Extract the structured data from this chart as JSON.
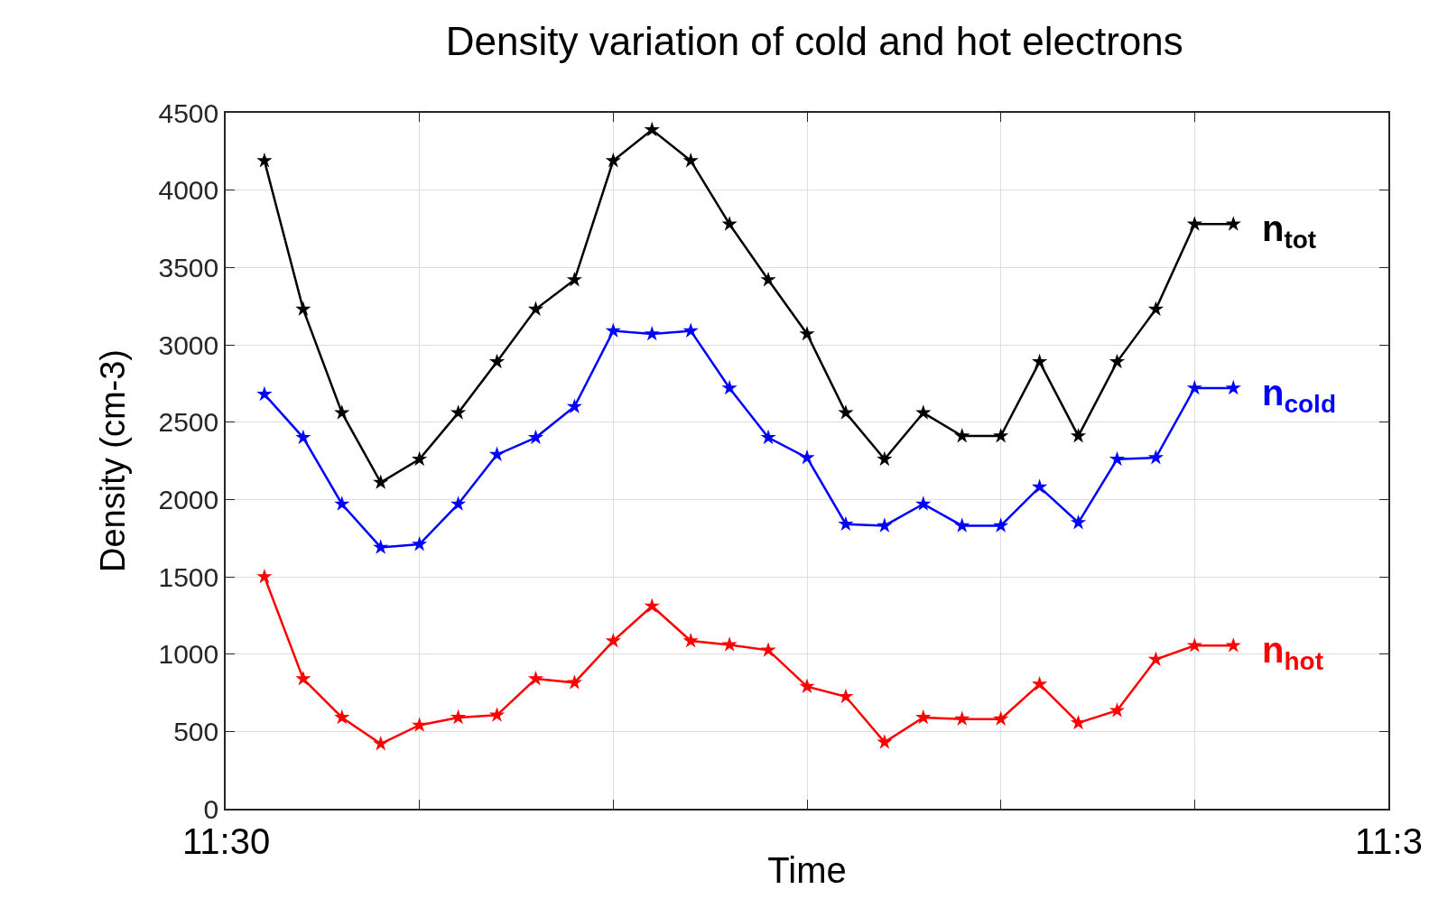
{
  "chart_data": {
    "type": "line",
    "title": "Density variation of cold and hot electrons",
    "xlabel": "Time",
    "ylabel": "Density (cm-3)",
    "categories": [
      null,
      null,
      null,
      null,
      null,
      null,
      null,
      null,
      null,
      null,
      null,
      null,
      null,
      null,
      null,
      null,
      null,
      null,
      null,
      null,
      null,
      null,
      null,
      null,
      null,
      null
    ],
    "annotations": [
      "11:30",
      "11:3"
    ],
    "ylim": [
      0,
      4500
    ],
    "yticks": [
      0,
      500,
      1000,
      1500,
      2000,
      2500,
      3000,
      3500,
      4000,
      4500
    ],
    "grid": true,
    "legend": false,
    "marker": "star",
    "line_style": "solid",
    "series": [
      {
        "name": "n$_{tot}$",
        "color": "#000000",
        "values": [
          4190,
          3230,
          2560,
          2110,
          2260,
          2560,
          2890,
          3230,
          3420,
          4190,
          4390,
          4190,
          3780,
          3420,
          3070,
          2560,
          2260,
          2560,
          2410,
          2410,
          2890,
          2410,
          2890,
          3230,
          3780,
          3780
        ]
      },
      {
        "name": "n$_{cold}$",
        "color": "#0000ff",
        "values": [
          2680,
          2400,
          1970,
          1690,
          1710,
          1970,
          2290,
          2400,
          2600,
          3090,
          3070,
          3090,
          2720,
          2400,
          2270,
          1840,
          1830,
          1970,
          1830,
          1830,
          2080,
          1850,
          2260,
          2270,
          2720,
          2720
        ]
      },
      {
        "name": "n$_{hot}$",
        "color": "#ff0000",
        "values": [
          1500,
          840,
          590,
          420,
          540,
          590,
          605,
          840,
          815,
          1085,
          1310,
          1085,
          1060,
          1025,
          790,
          725,
          430,
          590,
          580,
          580,
          805,
          555,
          635,
          965,
          1055,
          1055
        ]
      }
    ]
  }
}
